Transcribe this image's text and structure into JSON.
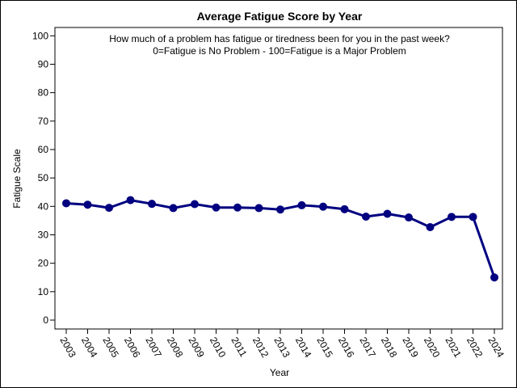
{
  "chart_data": {
    "type": "line",
    "title": "Average Fatigue Score by Year",
    "annotations": [
      "How much of a problem has fatigue or tiredness been for you in the past week?",
      "0=Fatigue is No Problem - 100=Fatigue is a Major Problem"
    ],
    "xlabel": "Year",
    "ylabel": "Fatigue Scale",
    "x": [
      "2003",
      "2004",
      "2005",
      "2006",
      "2007",
      "2008",
      "2009",
      "2010",
      "2011",
      "2012",
      "2013",
      "2014",
      "2015",
      "2016",
      "2017",
      "2018",
      "2019",
      "2020",
      "2021",
      "2022",
      "2024"
    ],
    "series": [
      {
        "values": [
          41.1,
          40.6,
          39.5,
          42.2,
          40.9,
          39.4,
          40.8,
          39.6,
          39.6,
          39.4,
          38.9,
          40.4,
          39.9,
          39.0,
          36.4,
          37.4,
          36.1,
          32.7,
          36.3,
          36.3,
          15.0
        ]
      }
    ],
    "ylim": [
      0,
      100
    ],
    "yticks": [
      0,
      10,
      20,
      30,
      40,
      50,
      60,
      70,
      80,
      90,
      100
    ],
    "grid": false,
    "legend": "none",
    "colors": {
      "line": "#000080",
      "marker": "#000080",
      "axes": "#000000"
    }
  }
}
